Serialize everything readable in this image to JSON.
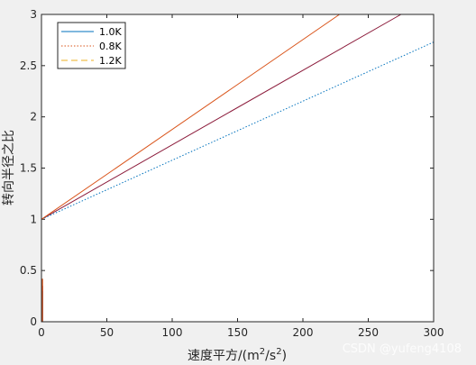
{
  "chart_data": {
    "type": "line",
    "xlabel_main": "速度平方/(m",
    "xlabel_sup": "2",
    "xlabel_mid": "/s",
    "xlabel_sup2": "2",
    "xlabel_end": ")",
    "ylabel": "转向半径之比",
    "xlim": [
      0,
      300
    ],
    "ylim": [
      0,
      3
    ],
    "xticks": [
      0,
      50,
      100,
      150,
      200,
      250,
      300
    ],
    "yticks": [
      0,
      0.5,
      1,
      1.5,
      2,
      2.5,
      3
    ],
    "xtick_labels": [
      "0",
      "50",
      "100",
      "150",
      "200",
      "250",
      "300"
    ],
    "ytick_labels": [
      "0",
      "0.5",
      "1",
      "1.5",
      "2",
      "2.5",
      "3"
    ],
    "grid": false,
    "legend_position": "top-left",
    "series": [
      {
        "name": "1.0K",
        "color": "#8b1a3a",
        "dash": "solid",
        "x": [
          0,
          275
        ],
        "y": [
          1.0,
          3.0
        ],
        "spike": [
          0.0,
          0.35
        ]
      },
      {
        "name": "0.8K",
        "color": "#0072bd",
        "dash": "dotted",
        "x": [
          0,
          300
        ],
        "y": [
          1.0,
          2.73
        ],
        "spike": [
          0.0,
          0.3
        ]
      },
      {
        "name": "1.2K",
        "color": "#d95319",
        "dash": "solid",
        "x": [
          0,
          228
        ],
        "y": [
          1.0,
          3.0
        ],
        "spike": [
          0.0,
          0.42
        ]
      }
    ],
    "legend_entries": [
      {
        "label": "1.0K",
        "color": "#0072bd",
        "dash": "solid"
      },
      {
        "label": "0.8K",
        "color": "#d95319",
        "dash": "dotted"
      },
      {
        "label": "1.2K",
        "color": "#edb120",
        "dash": "dashed"
      }
    ]
  },
  "watermark": "CSDN @yufeng4108"
}
